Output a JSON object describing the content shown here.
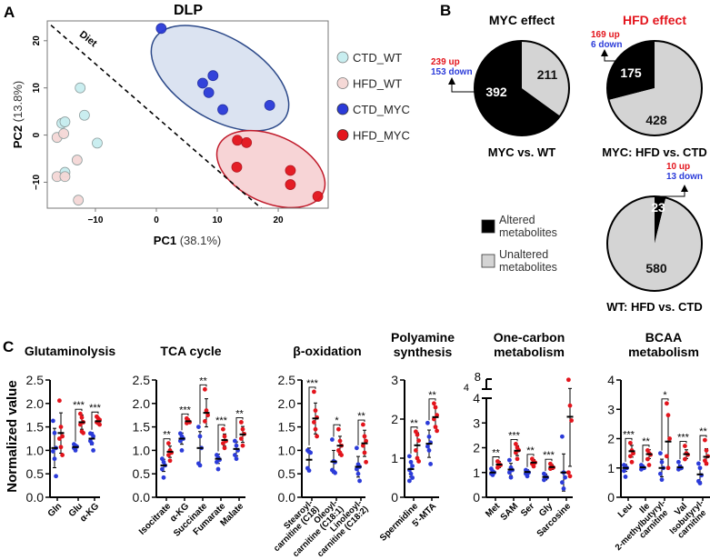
{
  "panel_labels": [
    "A",
    "B",
    "C"
  ],
  "colors": {
    "blue": "#2b3bd9",
    "red": "#e3141c",
    "cyan": "#c8eef0",
    "pink": "#f5d8d6",
    "dark": "#000000",
    "grey": "#d4d4d4",
    "ellipse_blue": "#dbe3f1",
    "ellipse_red": "#f7d4d6"
  },
  "chart_data": [
    {
      "type": "scatter",
      "title": "DLP",
      "xlabel_bold": "PC1",
      "xlabel_rest": "(38.1%)",
      "ylabel_bold": "PC2",
      "ylabel_rest": "(13.8%)",
      "xticks": [
        -10,
        0,
        10,
        20
      ],
      "yticks": [
        -10,
        0,
        10,
        20
      ],
      "xlim": [
        -17.9,
        28.2
      ],
      "ylim": [
        -15.5,
        24.2
      ],
      "annotation": "Diet",
      "legend_placement": "right",
      "series": [
        {
          "name": "CTD_WT",
          "color": "#c8eef0",
          "points": [
            [
              -12.5,
              10
            ],
            [
              -11.8,
              4.2
            ],
            [
              -15.5,
              2.5
            ],
            [
              -15,
              2.8
            ],
            [
              -9.7,
              -1.7
            ],
            [
              -15,
              -7.9
            ]
          ]
        },
        {
          "name": "HFD_WT",
          "color": "#f5d8d6",
          "points": [
            [
              -16.3,
              -0.5
            ],
            [
              -15.2,
              0.3
            ],
            [
              -13,
              -5.3
            ],
            [
              -16.3,
              -8.8
            ],
            [
              -15,
              -8.8
            ],
            [
              -12.8,
              -13.8
            ]
          ]
        },
        {
          "name": "CTD_MYC",
          "color": "#2b3bd9",
          "points": [
            [
              0.8,
              22.6
            ],
            [
              7.6,
              11
            ],
            [
              9.3,
              12.6
            ],
            [
              8.6,
              9
            ],
            [
              10.9,
              5.4
            ],
            [
              18.6,
              6.3
            ]
          ]
        },
        {
          "name": "HFD_MYC",
          "color": "#e3141c",
          "points": [
            [
              13.3,
              -1.1
            ],
            [
              14.8,
              -1.6
            ],
            [
              13.2,
              -6.8
            ],
            [
              22,
              -7.5
            ],
            [
              22,
              -10.5
            ],
            [
              26.5,
              -13
            ]
          ]
        }
      ]
    },
    {
      "type": "pie",
      "title": "MYC effect",
      "caption": "MYC vs. WT",
      "slices": [
        {
          "label": "Altered metabolites",
          "value": 392
        },
        {
          "label": "Unaltered metabolites",
          "value": 211
        }
      ],
      "up": "239 up",
      "down": "153 down"
    },
    {
      "type": "pie",
      "title": "HFD effect",
      "caption": "MYC: HFD vs. CTD",
      "slices": [
        {
          "label": "Altered metabolites",
          "value": 175
        },
        {
          "label": "Unaltered metabolites",
          "value": 428
        }
      ],
      "up": "169 up",
      "down": "6 down"
    },
    {
      "type": "pie",
      "title": "",
      "caption": "WT: HFD vs. CTD",
      "slices": [
        {
          "label": "Altered metabolites",
          "value": 23
        },
        {
          "label": "Unaltered metabolites",
          "value": 580
        }
      ],
      "up": "10 up",
      "down": "13 down"
    },
    {
      "type": "scatter",
      "ylabel": "Normalized value",
      "panels": [
        {
          "title": [
            "Glutaminolysis"
          ],
          "yticks": [
            "0.0",
            "0.5",
            "1.0",
            "1.5",
            "2.0",
            "2.5"
          ],
          "ymax": 2.5,
          "items": [
            {
              "label": "Gln",
              "sig": "",
              "blue": {
                "mean": 1.05,
                "sd": 0.42,
                "pts": [
                  1.63,
                  1.37,
                  1.05,
                  0.98,
                  0.82,
                  0.45
                ]
              },
              "red": {
                "mean": 1.37,
                "sd": 0.43,
                "pts": [
                  2.06,
                  1.5,
                  1.3,
                  1.25,
                  1.07,
                  0.9
                ]
              }
            },
            {
              "label": "Glu",
              "sig": "***",
              "blue": {
                "mean": 1.07,
                "sd": 0.05,
                "pts": [
                  1.13,
                  1.1,
                  1.08,
                  1.05,
                  1.0
                ]
              },
              "red": {
                "mean": 1.6,
                "sd": 0.15,
                "pts": [
                  1.78,
                  1.7,
                  1.6,
                  1.55,
                  1.4,
                  1.37
                ]
              }
            },
            {
              "label": "α-KG",
              "sig": "***",
              "blue": {
                "mean": 1.25,
                "sd": 0.13,
                "pts": [
                  1.36,
                  1.35,
                  1.3,
                  1.2,
                  1.15,
                  1.0
                ]
              },
              "red": {
                "mean": 1.62,
                "sd": 0.06,
                "pts": [
                  1.72,
                  1.68,
                  1.65,
                  1.6,
                  1.58,
                  1.55
                ]
              }
            }
          ]
        },
        {
          "title": [
            "TCA cycle"
          ],
          "yticks": [
            "0.0",
            "0.5",
            "1.0",
            "1.5",
            "2.0",
            "2.5"
          ],
          "ymax": 2.5,
          "items": [
            {
              "label": "Isocitrate",
              "sig": "**",
              "blue": {
                "mean": 0.68,
                "sd": 0.13,
                "pts": [
                  0.82,
                  0.75,
                  0.68,
                  0.6,
                  0.42
                ]
              },
              "red": {
                "mean": 0.97,
                "sd": 0.12,
                "pts": [
                  1.15,
                  1.0,
                  0.95,
                  0.9,
                  0.78
                ]
              }
            },
            {
              "label": "α-KG",
              "sig": "***",
              "blue": {
                "mean": 1.25,
                "sd": 0.12,
                "pts": [
                  1.36,
                  1.3,
                  1.25,
                  1.2,
                  1.0
                ]
              },
              "red": {
                "mean": 1.62,
                "sd": 0.05,
                "pts": [
                  1.68,
                  1.64,
                  1.6,
                  1.58
                ]
              }
            },
            {
              "label": "Succinate",
              "sig": "**",
              "blue": {
                "mean": 1.05,
                "sd": 0.35,
                "pts": [
                  1.5,
                  1.3,
                  1.05,
                  0.72,
                  0.68
                ]
              },
              "red": {
                "mean": 1.8,
                "sd": 0.3,
                "pts": [
                  2.3,
                  1.85,
                  1.75,
                  1.62
                ]
              }
            },
            {
              "label": "Fumarate",
              "sig": "***",
              "blue": {
                "mean": 0.82,
                "sd": 0.1,
                "pts": [
                  0.9,
                  0.85,
                  0.8,
                  0.75,
                  0.6
                ]
              },
              "red": {
                "mean": 1.22,
                "sd": 0.13,
                "pts": [
                  1.45,
                  1.3,
                  1.2,
                  1.15,
                  1.05
                ]
              }
            },
            {
              "label": "Malate",
              "sig": "**",
              "blue": {
                "mean": 1.03,
                "sd": 0.15,
                "pts": [
                  1.2,
                  1.1,
                  1.0,
                  0.9,
                  0.82
                ]
              },
              "red": {
                "mean": 1.34,
                "sd": 0.17,
                "pts": [
                  1.6,
                  1.45,
                  1.35,
                  1.25,
                  1.1
                ]
              }
            }
          ]
        },
        {
          "title": [
            "β-oxidation"
          ],
          "yticks": [
            "0.0",
            "0.5",
            "1.0",
            "1.5",
            "2.0",
            "2.5"
          ],
          "ymax": 2.5,
          "items": [
            {
              "label": "Stearoyl-\ncarnitine (C18)",
              "sig": "***",
              "blue": {
                "mean": 0.8,
                "sd": 0.25,
                "pts": [
                  1.0,
                  0.97,
                  0.95,
                  0.62,
                  0.57
                ]
              },
              "red": {
                "mean": 1.68,
                "sd": 0.33,
                "pts": [
                  2.25,
                  1.85,
                  1.7,
                  1.6,
                  1.45,
                  1.3
                ]
              }
            },
            {
              "label": "Oleoyl-\ncarnitine (C18:1)",
              "sig": "*",
              "blue": {
                "mean": 0.76,
                "sd": 0.24,
                "pts": [
                  1.23,
                  0.77,
                  0.75,
                  0.58,
                  0.55,
                  0.52
                ]
              },
              "red": {
                "mean": 1.1,
                "sd": 0.2,
                "pts": [
                  1.45,
                  1.2,
                  1.1,
                  1.0,
                  0.95,
                  0.9
                ]
              }
            },
            {
              "label": "Linoleoyl-\ncarnitine (C18:2)",
              "sig": "**",
              "blue": {
                "mean": 0.65,
                "sd": 0.22,
                "pts": [
                  1.05,
                  0.7,
                  0.65,
                  0.6,
                  0.5,
                  0.35
                ]
              },
              "red": {
                "mean": 1.15,
                "sd": 0.28,
                "pts": [
                  1.55,
                  1.3,
                  1.2,
                  1.1,
                  0.95,
                  0.75
                ]
              }
            }
          ]
        },
        {
          "title": [
            "Polyamine",
            "synthesis"
          ],
          "yticks": [
            "0",
            "1",
            "2",
            "3"
          ],
          "ymax": 3,
          "items": [
            {
              "label": "Spermidine",
              "sig": "**",
              "blue": {
                "mean": 0.72,
                "sd": 0.2,
                "pts": [
                  1.05,
                  0.9,
                  0.8,
                  0.7,
                  0.6,
                  0.5,
                  0.42
                ]
              },
              "red": {
                "mean": 1.33,
                "sd": 0.32,
                "pts": [
                  1.68,
                  1.6,
                  1.45,
                  1.2,
                  1.0,
                  0.92
                ]
              }
            },
            {
              "label": "5'-MTA",
              "sig": "**",
              "blue": {
                "mean": 1.37,
                "sd": 0.35,
                "pts": [
                  1.9,
                  1.55,
                  1.4,
                  1.3,
                  1.2,
                  0.85
                ]
              },
              "red": {
                "mean": 2.05,
                "sd": 0.28,
                "pts": [
                  2.4,
                  2.3,
                  2.1,
                  2.0,
                  1.8,
                  1.7
                ]
              }
            }
          ]
        },
        {
          "title": [
            "One-carbon",
            "metabolism"
          ],
          "yticks": [
            "0",
            "1",
            "2",
            "3",
            "4"
          ],
          "ymax": 4,
          "break_ticks": [
            "4",
            "8"
          ],
          "broken_axis": true,
          "items": [
            {
              "label": "Met",
              "sig": "**",
              "blue": {
                "mean": 1.0,
                "sd": 0.08,
                "pts": [
                  1.15,
                  1.05,
                  1.0,
                  0.95,
                  0.9
                ]
              },
              "red": {
                "mean": 1.32,
                "sd": 0.12,
                "pts": [
                  1.45,
                  1.35,
                  1.3,
                  1.2
                ]
              }
            },
            {
              "label": "SAM",
              "sig": "***",
              "blue": {
                "mean": 1.12,
                "sd": 0.25,
                "pts": [
                  1.5,
                  1.2,
                  1.1,
                  1.0,
                  0.8
                ]
              },
              "red": {
                "mean": 1.88,
                "sd": 0.2,
                "pts": [
                  2.15,
                  2.0,
                  1.9,
                  1.8,
                  1.55
                ]
              }
            },
            {
              "label": "Ser",
              "sig": "**",
              "blue": {
                "mean": 1.02,
                "sd": 0.09,
                "pts": [
                  1.1,
                  1.05,
                  1.0,
                  0.95,
                  0.85
                ]
              },
              "red": {
                "mean": 1.4,
                "sd": 0.12,
                "pts": [
                  1.55,
                  1.45,
                  1.4,
                  1.35,
                  1.25
                ]
              }
            },
            {
              "label": "Gly",
              "sig": "***",
              "blue": {
                "mean": 0.82,
                "sd": 0.12,
                "pts": [
                  0.95,
                  0.85,
                  0.8,
                  0.7
                ]
              },
              "red": {
                "mean": 1.22,
                "sd": 0.1,
                "pts": [
                  1.35,
                  1.25,
                  1.2,
                  1.15
                ]
              }
            },
            {
              "label": "Sarcosine",
              "sig": "",
              "blue": {
                "mean": 1.0,
                "sd": 0.75,
                "pts": [
                  2.45,
                  1.0,
                  0.8,
                  0.6,
                  0.35
                ]
              },
              "red": {
                "mean": 3.25,
                "sd": 2.0,
                "pts": [
                  7.8,
                  3.7,
                  3.1,
                  1.0,
                  0.85
                ]
              }
            }
          ]
        },
        {
          "title": [
            "BCAA",
            "metabolism"
          ],
          "yticks": [
            "0",
            "1",
            "2",
            "3",
            "4"
          ],
          "ymax": 4,
          "items": [
            {
              "label": "Leu",
              "sig": "***",
              "blue": {
                "mean": 1.0,
                "sd": 0.12,
                "pts": [
                  1.1,
                  1.05,
                  1.0,
                  0.9,
                  0.7
                ]
              },
              "red": {
                "mean": 1.57,
                "sd": 0.2,
                "pts": [
                  1.85,
                  1.6,
                  1.5,
                  1.4,
                  1.2
                ]
              }
            },
            {
              "label": "Ile",
              "sig": "**",
              "blue": {
                "mean": 1.02,
                "sd": 0.07,
                "pts": [
                  1.1,
                  1.05,
                  1.0,
                  0.95
                ]
              },
              "red": {
                "mean": 1.47,
                "sd": 0.15,
                "pts": [
                  1.6,
                  1.5,
                  1.45,
                  1.3,
                  1.1
                ]
              }
            },
            {
              "label": "2-methylbutyryl-\ncarnitine",
              "sig": "*",
              "blue": {
                "mean": 1.0,
                "sd": 0.3,
                "pts": [
                  1.5,
                  1.2,
                  1.0,
                  0.8,
                  0.6
                ]
              },
              "red": {
                "mean": 1.9,
                "sd": 0.9,
                "pts": [
                  3.2,
                  2.8,
                  2.0,
                  1.4,
                  1.0
                ]
              }
            },
            {
              "label": "Val",
              "sig": "***",
              "blue": {
                "mean": 1.02,
                "sd": 0.08,
                "pts": [
                  1.2,
                  1.05,
                  1.0,
                  0.95
                ]
              },
              "red": {
                "mean": 1.47,
                "sd": 0.15,
                "pts": [
                  1.75,
                  1.5,
                  1.45,
                  1.3
                ]
              }
            },
            {
              "label": "Isobutyryl-\ncarnitine",
              "sig": "**",
              "blue": {
                "mean": 0.78,
                "sd": 0.25,
                "pts": [
                  1.15,
                  1.0,
                  0.75,
                  0.55,
                  0.48
                ]
              },
              "red": {
                "mean": 1.38,
                "sd": 0.28,
                "pts": [
                  1.95,
                  1.6,
                  1.4,
                  1.25,
                  1.15
                ]
              }
            }
          ]
        }
      ]
    }
  ]
}
